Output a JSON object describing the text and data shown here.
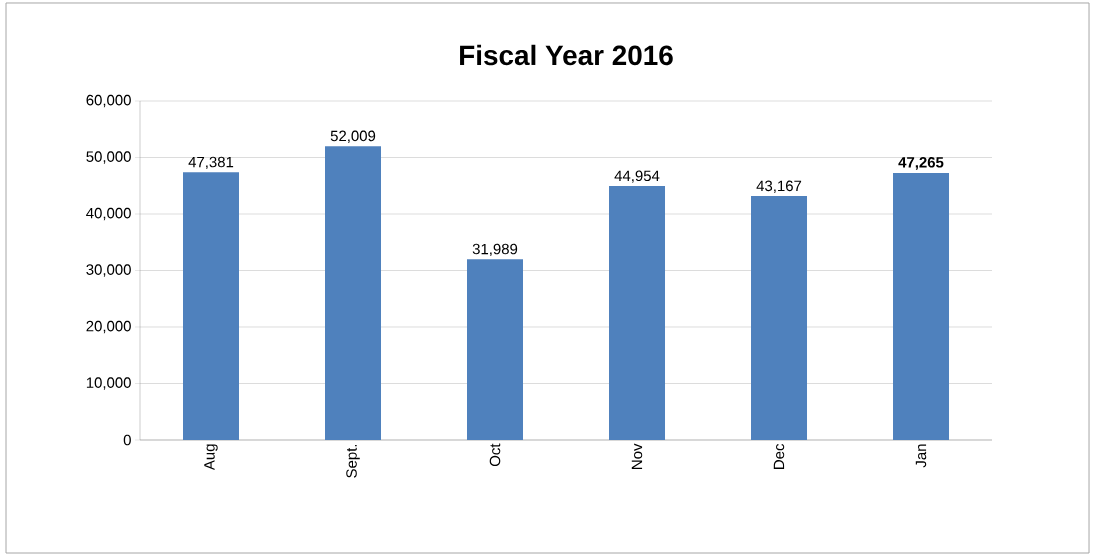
{
  "chart_data": {
    "type": "bar",
    "title": "Fiscal Year 2016",
    "categories": [
      "Aug",
      "Sept.",
      "Oct",
      "Nov",
      "Dec",
      "Jan"
    ],
    "values": [
      47381,
      52009,
      31989,
      44954,
      43167,
      47265
    ],
    "value_labels": [
      "47,381",
      "52,009",
      "31,989",
      "44,954",
      "43,167",
      "**47,265**"
    ],
    "color": "#4f81bd",
    "ylim": [
      0,
      60000
    ],
    "yticks": [
      {
        "value": 0,
        "label": "0"
      },
      {
        "value": 10000,
        "label": "10,000"
      },
      {
        "value": 20000,
        "label": "20,000"
      },
      {
        "value": 30000,
        "label": "30,000"
      },
      {
        "value": 40000,
        "label": "40,000"
      },
      {
        "value": 50000,
        "label": "50,000"
      },
      {
        "value": 60000,
        "label": "60,000"
      }
    ],
    "grid": "y"
  }
}
